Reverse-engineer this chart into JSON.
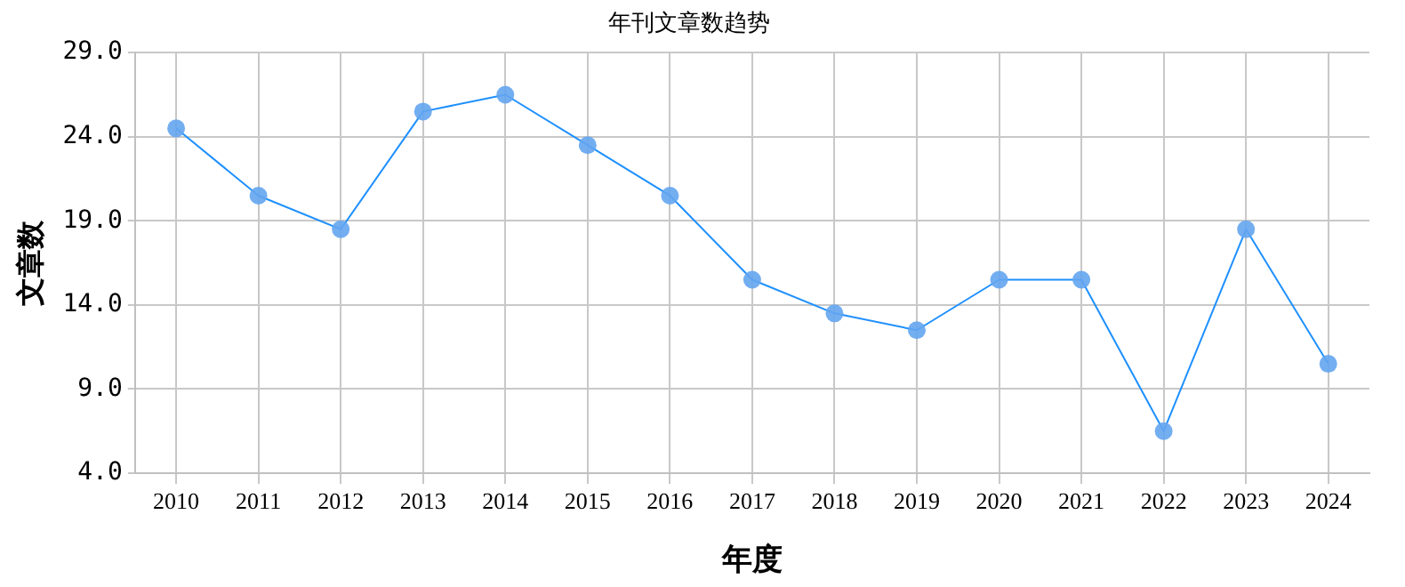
{
  "chart_data": {
    "type": "line",
    "title": "年刊文章数趋势",
    "xlabel": "年度",
    "ylabel": "文章数",
    "categories": [
      "2010",
      "2011",
      "2012",
      "2013",
      "2014",
      "2015",
      "2016",
      "2017",
      "2018",
      "2019",
      "2020",
      "2021",
      "2022",
      "2023",
      "2024"
    ],
    "series": [
      {
        "color": "#1e90ff",
        "values": [
          24.5,
          20.5,
          18.5,
          25.5,
          26.5,
          23.5,
          20.5,
          15.5,
          13.5,
          12.5,
          15.5,
          15.5,
          6.5,
          18.5,
          10.5
        ]
      }
    ],
    "ylim": [
      4,
      29
    ],
    "yticks": [
      {
        "value": 4,
        "label": "4.0"
      },
      {
        "value": 9,
        "label": "9.0"
      },
      {
        "value": 14,
        "label": "14.0"
      },
      {
        "value": 19,
        "label": "19.0"
      },
      {
        "value": 24,
        "label": "24.0"
      },
      {
        "value": 29,
        "label": "29.0"
      }
    ],
    "grid": true,
    "marker": "circle",
    "line_style": "solid",
    "legend": false
  }
}
